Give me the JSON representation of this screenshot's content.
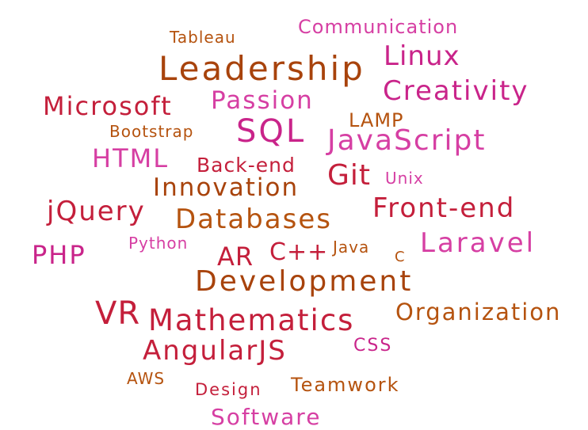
{
  "palette": {
    "pink": "#d63fa3",
    "magenta": "#c9248a",
    "crimson": "#c41f3b",
    "brown": "#b5530f",
    "orange": "#c05a12"
  },
  "words": [
    {
      "id": "communication",
      "text": "Communication",
      "color": "#d63fa3"
    },
    {
      "id": "tableau",
      "text": "Tableau",
      "color": "#b5530f"
    },
    {
      "id": "linux",
      "text": "Linux",
      "color": "#c9248a"
    },
    {
      "id": "leadership",
      "text": "Leadership",
      "color": "#a8430c"
    },
    {
      "id": "creativity",
      "text": "Creativity",
      "color": "#c9248a"
    },
    {
      "id": "microsoft",
      "text": "Microsoft",
      "color": "#c41f3b"
    },
    {
      "id": "passion",
      "text": "Passion",
      "color": "#d63fa3"
    },
    {
      "id": "lamp",
      "text": "LAMP",
      "color": "#b5530f"
    },
    {
      "id": "bootstrap",
      "text": "Bootstrap",
      "color": "#b5530f"
    },
    {
      "id": "sql",
      "text": "SQL",
      "color": "#c9248a"
    },
    {
      "id": "javascript",
      "text": "JavaScript",
      "color": "#d63fa3"
    },
    {
      "id": "html",
      "text": "HTML",
      "color": "#d63fa3"
    },
    {
      "id": "back-end",
      "text": "Back-end",
      "color": "#c41f3b"
    },
    {
      "id": "git",
      "text": "Git",
      "color": "#c41f3b"
    },
    {
      "id": "unix",
      "text": "Unix",
      "color": "#d63fa3"
    },
    {
      "id": "innovation",
      "text": "Innovation",
      "color": "#a8430c"
    },
    {
      "id": "jquery",
      "text": "jQuery",
      "color": "#c41f3b"
    },
    {
      "id": "databases",
      "text": "Databases",
      "color": "#b5530f"
    },
    {
      "id": "front-end",
      "text": "Front-end",
      "color": "#c41f3b"
    },
    {
      "id": "php",
      "text": "PHP",
      "color": "#c9248a"
    },
    {
      "id": "python",
      "text": "Python",
      "color": "#d63fa3"
    },
    {
      "id": "ar",
      "text": "AR",
      "color": "#c41f3b"
    },
    {
      "id": "cpp",
      "text": "C++",
      "color": "#c41f3b"
    },
    {
      "id": "java",
      "text": "Java",
      "color": "#b5530f"
    },
    {
      "id": "c",
      "text": "C",
      "color": "#b5530f"
    },
    {
      "id": "laravel",
      "text": "Laravel",
      "color": "#d63fa3"
    },
    {
      "id": "development",
      "text": "Development",
      "color": "#a8430c"
    },
    {
      "id": "vr",
      "text": "VR",
      "color": "#c41f3b"
    },
    {
      "id": "mathematics",
      "text": "Mathematics",
      "color": "#c41f3b"
    },
    {
      "id": "organization",
      "text": "Organization",
      "color": "#b5530f"
    },
    {
      "id": "angularjs",
      "text": "AngularJS",
      "color": "#c41f3b"
    },
    {
      "id": "css",
      "text": "CSS",
      "color": "#c9248a"
    },
    {
      "id": "aws",
      "text": "AWS",
      "color": "#b5530f"
    },
    {
      "id": "design",
      "text": "Design",
      "color": "#c41f3b"
    },
    {
      "id": "teamwork",
      "text": "Teamwork",
      "color": "#b5530f"
    },
    {
      "id": "software",
      "text": "Software",
      "color": "#d63fa3"
    }
  ]
}
